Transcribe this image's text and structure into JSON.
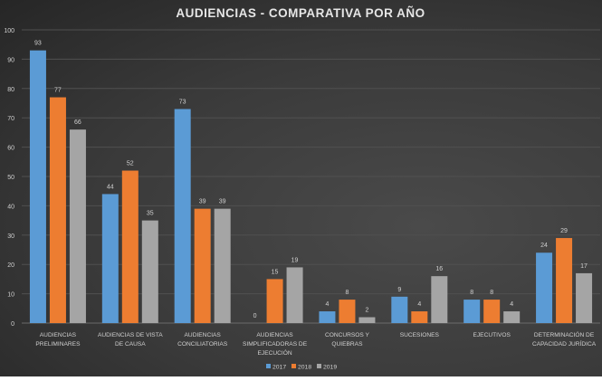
{
  "chart_data": {
    "type": "bar",
    "title": "AUDIENCIAS - COMPARATIVA POR AÑO",
    "categories": [
      [
        "AUDIENCIAS",
        "PRELIMINARES"
      ],
      [
        "AUDIENCIAS DE VISTA",
        "DE CAUSA"
      ],
      [
        "AUDIENCIAS",
        "CONCILIATORIAS"
      ],
      [
        "AUDIENCIAS",
        "SIMPLIFICADORAS DE",
        "EJECUCIÓN"
      ],
      [
        "CONCURSOS Y",
        "QUIEBRAS"
      ],
      [
        "SUCESIONES"
      ],
      [
        "EJECUTIVOS"
      ],
      [
        "DETERMINACIÓN DE",
        "CAPACIDAD JURÍDICA"
      ]
    ],
    "series": [
      {
        "name": "2017",
        "color": "#5b9bd5",
        "values": [
          93,
          44,
          73,
          0,
          4,
          9,
          8,
          24
        ]
      },
      {
        "name": "2018",
        "color": "#ed7d31",
        "values": [
          77,
          52,
          39,
          15,
          8,
          4,
          8,
          29
        ]
      },
      {
        "name": "2019",
        "color": "#a5a5a5",
        "values": [
          66,
          35,
          39,
          19,
          2,
          16,
          4,
          17
        ]
      }
    ],
    "ylim": [
      0,
      100
    ],
    "yticks": [
      0,
      10,
      20,
      30,
      40,
      50,
      60,
      70,
      80,
      90,
      100
    ],
    "grid": true,
    "legend": "bottom",
    "data_labels": true
  }
}
